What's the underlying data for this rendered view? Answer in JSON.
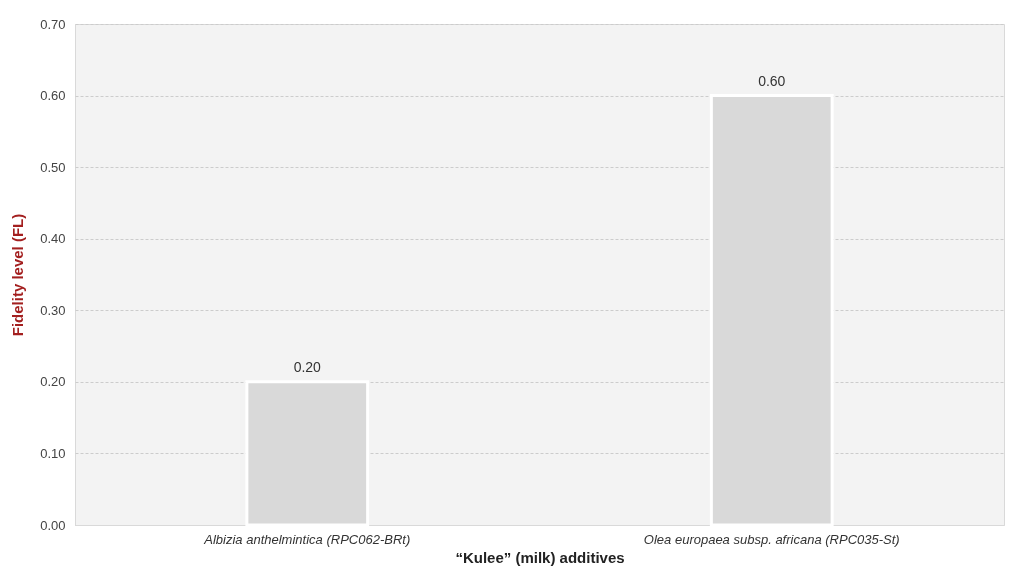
{
  "chart_data": {
    "type": "bar",
    "xlabel": "“Kulee” (milk) additives",
    "ylabel": "Fidelity level (FL)",
    "categories": [
      "Albizia anthelmintica (RPC062-BRt)",
      "Olea europaea subsp. africana (RPC035-St)"
    ],
    "values": [
      0.2,
      0.6
    ],
    "value_labels": [
      "0.20",
      "0.60"
    ],
    "color": "#d9d9d9",
    "ylim": [
      0,
      0.7
    ],
    "yticks": [
      {
        "value": 0,
        "label": "0.00"
      },
      {
        "value": 0.1,
        "label": "0.10"
      },
      {
        "value": 0.2,
        "label": "0.20"
      },
      {
        "value": 0.3,
        "label": "0.30"
      },
      {
        "value": 0.4,
        "label": "0.40"
      },
      {
        "value": 0.5,
        "label": "0.50"
      },
      {
        "value": 0.6,
        "label": "0.60"
      },
      {
        "value": 0.7,
        "label": "0.70"
      }
    ],
    "grid": "y"
  }
}
